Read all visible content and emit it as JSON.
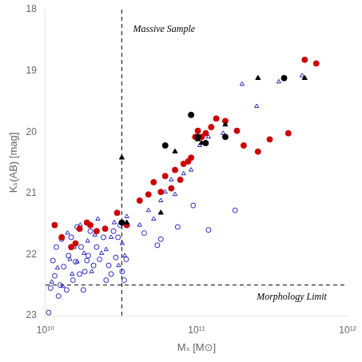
{
  "chart_data": {
    "type": "scatter",
    "xlabel": "Mₛ [M⊙]",
    "ylabel": "Kₛ(AB) [mag]",
    "log": "x",
    "grid": false,
    "xlim": [
      10000000000.0,
      1000000000000.0
    ],
    "xticks": [
      {
        "value": 10000000000.0,
        "label": "10¹⁰"
      },
      {
        "value": 100000000000.0,
        "label": "10¹¹"
      },
      {
        "value": 1000000000000.0,
        "label": "10¹²"
      }
    ],
    "ylim": [
      23,
      18
    ],
    "yticks": [
      18,
      19,
      20,
      21,
      22,
      23
    ],
    "reference_lines": [
      {
        "axis": "x",
        "value": 32000000000.0,
        "line_style": "dashed"
      },
      {
        "axis": "y",
        "value": 22.5,
        "line_style": "dashed"
      }
    ],
    "annotations": [
      {
        "text": "Massive Sample",
        "x": 38000000000.0,
        "y": 18.25
      },
      {
        "text": "Morphology Limit",
        "x": 250000000000.0,
        "y": 22.62
      }
    ],
    "series": [
      {
        "color": "#2222bb",
        "marker": "circle-open",
        "values": [
          [
            10500000000.0,
            22.95
          ],
          [
            10800000000.0,
            22.55
          ],
          [
            11200000000.0,
            22.1
          ],
          [
            11500000000.0,
            22.35
          ],
          [
            11800000000.0,
            21.88
          ],
          [
            12200000000.0,
            22.68
          ],
          [
            12500000000.0,
            22.5
          ],
          [
            12800000000.0,
            21.75
          ],
          [
            13200000000.0,
            22.2
          ],
          [
            13800000000.0,
            22.58
          ],
          [
            14200000000.0,
            22.02
          ],
          [
            14800000000.0,
            21.72
          ],
          [
            15200000000.0,
            22.42
          ],
          [
            15800000000.0,
            22.12
          ],
          [
            16200000000.0,
            21.55
          ],
          [
            16800000000.0,
            22.32
          ],
          [
            17200000000.0,
            21.88
          ],
          [
            17800000000.0,
            22.58
          ],
          [
            18200000000.0,
            22.28
          ],
          [
            18800000000.0,
            22.1
          ],
          [
            19200000000.0,
            22.02
          ],
          [
            19800000000.0,
            21.62
          ],
          [
            20800000000.0,
            22.18
          ],
          [
            21800000000.0,
            21.88
          ],
          [
            22800000000.0,
            22.08
          ],
          [
            24200000000.0,
            21.72
          ],
          [
            25200000000.0,
            22.42
          ],
          [
            26200000000.0,
            22.18
          ],
          [
            27200000000.0,
            22.32
          ],
          [
            28200000000.0,
            21.62
          ],
          [
            29200000000.0,
            22.05
          ],
          [
            30200000000.0,
            21.72
          ],
          [
            31200000000.0,
            21.52
          ],
          [
            32200000000.0,
            22.28
          ],
          [
            33200000000.0,
            22.42
          ],
          [
            34200000000.0,
            22.08
          ],
          [
            45000000000.0,
            21.65
          ],
          [
            55000000000.0,
            21.85
          ],
          [
            58000000000.0,
            21.75
          ],
          [
            75000000000.0,
            21.55
          ],
          [
            95000000000.0,
            21.2
          ],
          [
            120000000000.0,
            21.6
          ],
          [
            180000000000.0,
            21.28
          ]
        ]
      },
      {
        "color": "#2222bb",
        "marker": "triangle-open",
        "values": [
          [
            11000000000.0,
            22.45
          ],
          [
            12000000000.0,
            22.22
          ],
          [
            13000000000.0,
            22.52
          ],
          [
            14000000000.0,
            21.65
          ],
          [
            14500000000.0,
            22.08
          ],
          [
            15000000000.0,
            22.32
          ],
          [
            15500000000.0,
            21.88
          ],
          [
            16200000000.0,
            22.12
          ],
          [
            17000000000.0,
            21.52
          ],
          [
            18000000000.0,
            21.98
          ],
          [
            19000000000.0,
            21.78
          ],
          [
            20200000000.0,
            22.28
          ],
          [
            21200000000.0,
            21.68
          ],
          [
            22200000000.0,
            21.42
          ],
          [
            23500000000.0,
            21.98
          ],
          [
            25200000000.0,
            21.92
          ],
          [
            27200000000.0,
            21.72
          ],
          [
            28500000000.0,
            21.48
          ],
          [
            30500000000.0,
            22.18
          ],
          [
            32200000000.0,
            21.82
          ],
          [
            33500000000.0,
            22.02
          ],
          [
            34500000000.0,
            21.38
          ],
          [
            42000000000.0,
            21.52
          ],
          [
            48000000000.0,
            21.28
          ],
          [
            52000000000.0,
            21.42
          ],
          [
            58000000000.0,
            21.12
          ],
          [
            62000000000.0,
            20.98
          ],
          [
            68000000000.0,
            20.78
          ],
          [
            72000000000.0,
            21.02
          ],
          [
            82000000000.0,
            20.68
          ],
          [
            92000000000.0,
            20.62
          ],
          [
            105000000000.0,
            20.22
          ],
          [
            120000000000.0,
            20.08
          ],
          [
            150000000000.0,
            20.02
          ],
          [
            200000000000.0,
            19.22
          ],
          [
            250000000000.0,
            19.58
          ],
          [
            350000000000.0,
            19.18
          ],
          [
            500000000000.0,
            19.08
          ]
        ]
      },
      {
        "color": "#cc0000",
        "marker": "circle",
        "values": [
          [
            11500000000.0,
            21.52
          ],
          [
            12800000000.0,
            21.72
          ],
          [
            14800000000.0,
            21.88
          ],
          [
            15800000000.0,
            21.82
          ],
          [
            16800000000.0,
            21.58
          ],
          [
            18800000000.0,
            21.48
          ],
          [
            19800000000.0,
            21.52
          ],
          [
            21800000000.0,
            21.62
          ],
          [
            24800000000.0,
            21.58
          ],
          [
            29800000000.0,
            21.32
          ],
          [
            34500000000.0,
            21.52
          ],
          [
            42000000000.0,
            21.12
          ],
          [
            48000000000.0,
            21.02
          ],
          [
            52000000000.0,
            20.82
          ],
          [
            58000000000.0,
            20.98
          ],
          [
            62000000000.0,
            20.72
          ],
          [
            68000000000.0,
            20.92
          ],
          [
            72000000000.0,
            20.62
          ],
          [
            78000000000.0,
            20.78
          ],
          [
            82000000000.0,
            20.52
          ],
          [
            88000000000.0,
            20.48
          ],
          [
            92000000000.0,
            20.42
          ],
          [
            98000000000.0,
            20.08
          ],
          [
            102000000000.0,
            19.98
          ],
          [
            108000000000.0,
            20.08
          ],
          [
            115000000000.0,
            20.02
          ],
          [
            125000000000.0,
            19.92
          ],
          [
            135000000000.0,
            19.78
          ],
          [
            155000000000.0,
            19.82
          ],
          [
            185000000000.0,
            19.98
          ],
          [
            205000000000.0,
            20.22
          ],
          [
            255000000000.0,
            20.32
          ],
          [
            305000000000.0,
            20.12
          ],
          [
            405000000000.0,
            20.02
          ],
          [
            520000000000.0,
            18.82
          ],
          [
            620000000000.0,
            18.88
          ]
        ]
      },
      {
        "color": "#000000",
        "marker": "circle",
        "values": [
          [
            32000000000.0,
            21.48
          ],
          [
            62000000000.0,
            20.22
          ],
          [
            92000000000.0,
            19.72
          ],
          [
            102000000000.0,
            20.08
          ],
          [
            115000000000.0,
            20.18
          ],
          [
            155000000000.0,
            20.08
          ],
          [
            380000000000.0,
            19.12
          ]
        ]
      },
      {
        "color": "#000000",
        "marker": "triangle",
        "values": [
          [
            32000000000.0,
            20.42
          ],
          [
            34500000000.0,
            21.48
          ],
          [
            58000000000.0,
            21.32
          ],
          [
            72000000000.0,
            20.32
          ],
          [
            92000000000.0,
            19.72
          ],
          [
            102000000000.0,
            20.12
          ],
          [
            108000000000.0,
            20.18
          ],
          [
            155000000000.0,
            19.88
          ],
          [
            255000000000.0,
            19.12
          ],
          [
            520000000000.0,
            19.12
          ]
        ]
      }
    ]
  }
}
